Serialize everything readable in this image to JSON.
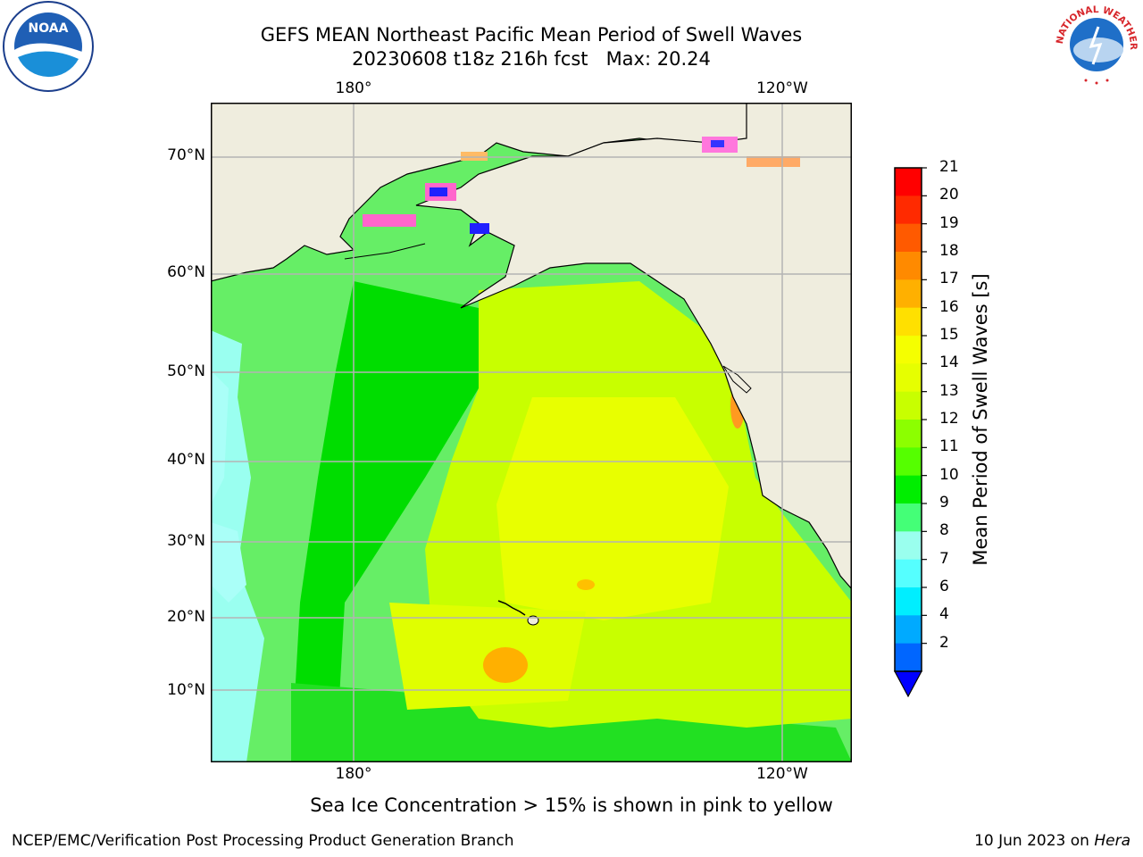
{
  "title": {
    "line1": "GEFS MEAN Northeast Pacific Mean Period of Swell Waves",
    "line2": "20230608 t18z 216h fcst   Max: 20.24"
  },
  "map": {
    "lon_labels_top": [
      "180°",
      "120°W"
    ],
    "lon_labels_bottom": [
      "180°",
      "120°W"
    ],
    "lat_labels": [
      "70°N",
      "60°N",
      "50°N",
      "40°N",
      "30°N",
      "20°N",
      "10°N"
    ],
    "gridlines": true,
    "land_color": "#efedde",
    "coast_color": "#000000"
  },
  "colorbar": {
    "title": "Mean Period of Swell Waves [s]",
    "ticks": [
      "21",
      "20",
      "19",
      "18",
      "17",
      "16",
      "15",
      "14",
      "13",
      "12",
      "11",
      "10",
      "9",
      "8",
      "7",
      "6",
      "4",
      "2"
    ],
    "colors": [
      "#ff0000",
      "#ff2a00",
      "#ff5a00",
      "#ff8a00",
      "#ffb000",
      "#ffe000",
      "#f5ff00",
      "#e6ff00",
      "#c8ff00",
      "#8cff00",
      "#55ff00",
      "#00ee00",
      "#44ff77",
      "#9affee",
      "#55ffff",
      "#00eeff",
      "#00aaff",
      "#0066ff"
    ],
    "extend_min_color": "#0000ff"
  },
  "footnote": "Sea Ice Concentration > 15% is shown in pink to yellow",
  "credit": "NCEP/EMC/Verification Post Processing Product Generation Branch",
  "stamp": {
    "date": "10 Jun 2023 on ",
    "host": "Hera"
  },
  "logos": {
    "left": "noaa-logo",
    "right_text": "NATIONAL WEATHER SERVICE"
  }
}
